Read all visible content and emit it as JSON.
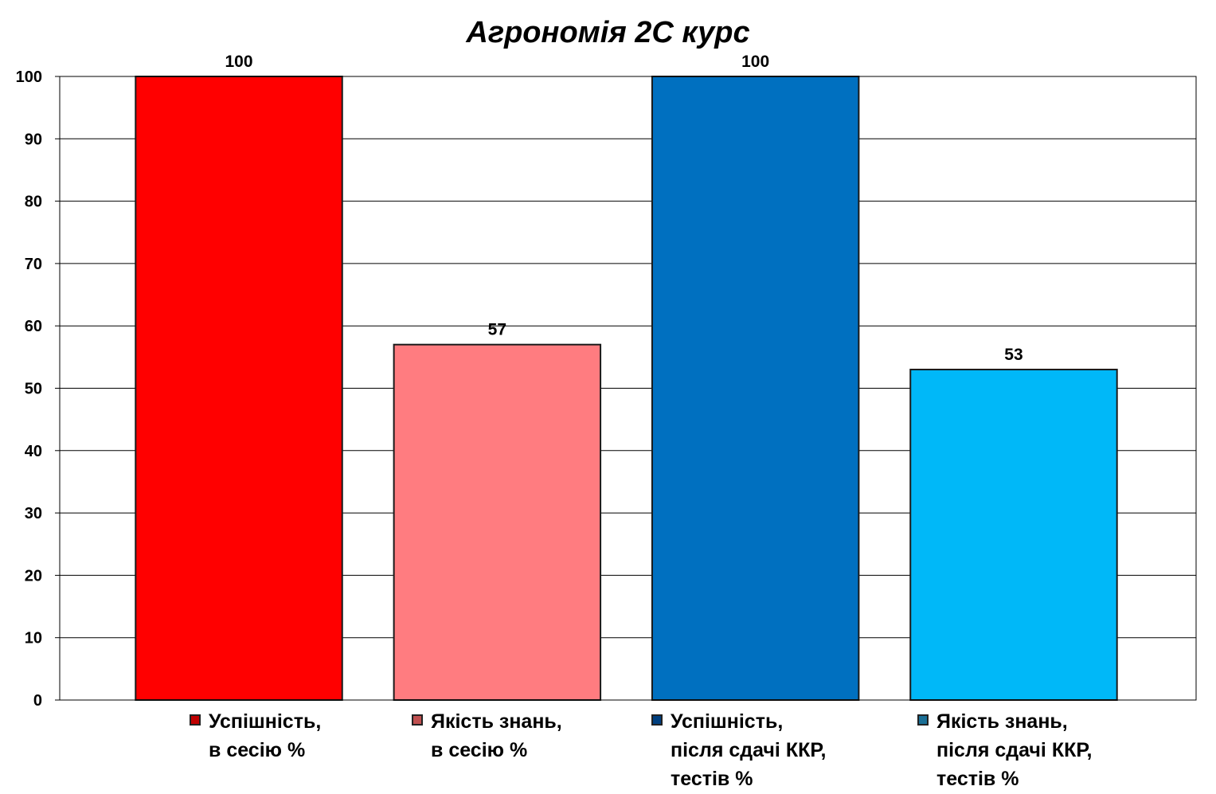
{
  "chart_data": {
    "type": "bar",
    "title": "Агрономія 2С курс",
    "xlabel": "",
    "ylabel": "",
    "ylim": [
      0,
      100
    ],
    "yticks": [
      "0",
      "10",
      "20",
      "30",
      "40",
      "50",
      "60",
      "70",
      "80",
      "90",
      "100"
    ],
    "grid": true,
    "legend_position": "bottom",
    "categories": [
      "Успішність,\nв сесію %",
      "Якість знань,\nв сесію %",
      "Успішність,\nпісля сдачі ККР,\nтестів %",
      "Якість знань,\nпісля сдачі ККР,\nтестів %"
    ],
    "values": [
      100,
      57,
      100,
      53
    ],
    "data_labels": [
      "100",
      "57",
      "100",
      "53"
    ],
    "colors": [
      "#ff0000",
      "#ff7c80",
      "#0070c0",
      "#00b8f8"
    ],
    "legend_swatch_colors": [
      "#c00000",
      "#c05050",
      "#003f7f",
      "#1a6f96"
    ]
  }
}
